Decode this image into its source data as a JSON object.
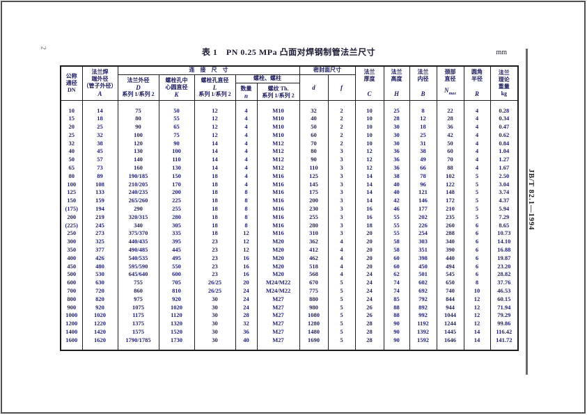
{
  "page": {
    "number": "2",
    "standard_code": "JB/T 82.1—1994",
    "unit": "mm"
  },
  "table": {
    "title": "表 1　PN 0.25 MPa 凸面对焊钢制管法兰尺寸",
    "header": {
      "col_dn": {
        "cn": "公称\n通径\nDN"
      },
      "col_a": {
        "cn": "法兰焊\n端外径\n（管子外径）",
        "sym": "A"
      },
      "group_conn": "连　接　尺　寸",
      "col_d": {
        "cn": "法兰外径",
        "sym": "D",
        "sub": "系列 1/系列 2"
      },
      "col_k": {
        "cn": "螺栓孔中\n心圆直径",
        "sym": "K"
      },
      "col_l": {
        "cn": "螺栓孔直径",
        "sym": "L",
        "sub": "系列 1/系列 2"
      },
      "group_bolt": "螺栓、螺柱",
      "col_n": {
        "cn": "数量",
        "sym": "n"
      },
      "col_th": {
        "cn": "螺纹 Th.",
        "sub": "系列 1/系列 2"
      },
      "group_seal": "密封面尺寸",
      "col_sd": {
        "sym": "d"
      },
      "col_sf": {
        "sym": "f"
      },
      "col_c": {
        "cn": "法兰\n厚度",
        "sym": "C"
      },
      "col_h": {
        "cn": "法兰\n高度",
        "sym": "H"
      },
      "col_b": {
        "cn": "法兰\n内径",
        "sym": "B"
      },
      "col_nmax": {
        "cn": "颈部\n直径",
        "sym": "N",
        "symsub": "max"
      },
      "col_r": {
        "cn": "圆角\n半径",
        "sym": "R"
      },
      "col_kg": {
        "cn": "法兰\n理论\n重量\nkg"
      }
    },
    "rows": [
      [
        "10",
        "14",
        "75",
        "50",
        "12",
        "4",
        "M10",
        "32",
        "2",
        "10",
        "25",
        "8",
        "22",
        "4",
        "0.28"
      ],
      [
        "15",
        "18",
        "80",
        "55",
        "12",
        "4",
        "M10",
        "40",
        "2",
        "10",
        "28",
        "12",
        "28",
        "4",
        "0.34"
      ],
      [
        "20",
        "25",
        "90",
        "65",
        "12",
        "4",
        "M10",
        "50",
        "2",
        "10",
        "30",
        "18",
        "36",
        "4",
        "0.47"
      ],
      [
        "25",
        "32",
        "100",
        "75",
        "12",
        "4",
        "M10",
        "60",
        "2",
        "10",
        "30",
        "25",
        "42",
        "4",
        "0.62"
      ],
      [
        "32",
        "38",
        "120",
        "90",
        "14",
        "4",
        "M12",
        "70",
        "2",
        "10",
        "30",
        "31",
        "50",
        "4",
        "0.84"
      ],
      [
        "40",
        "45",
        "130",
        "100",
        "14",
        "4",
        "M12",
        "80",
        "3",
        "12",
        "36",
        "38",
        "60",
        "4",
        "1.04"
      ],
      [
        "50",
        "57",
        "140",
        "110",
        "14",
        "4",
        "M12",
        "90",
        "3",
        "12",
        "36",
        "49",
        "70",
        "4",
        "1.27"
      ],
      [
        "65",
        "73",
        "160",
        "130",
        "14",
        "4",
        "M12",
        "110",
        "3",
        "12",
        "36",
        "66",
        "88",
        "4",
        "1.67"
      ],
      [
        "80",
        "89",
        "190/185",
        "150",
        "18",
        "4",
        "M16",
        "125",
        "3",
        "14",
        "38",
        "78",
        "102",
        "5",
        "2.50"
      ],
      [
        "100",
        "108",
        "210/205",
        "170",
        "18",
        "4",
        "M16",
        "145",
        "3",
        "14",
        "40",
        "96",
        "122",
        "5",
        "3.04"
      ],
      [
        "125",
        "133",
        "240/235",
        "200",
        "18",
        "8",
        "M16",
        "175",
        "3",
        "14",
        "40",
        "121",
        "148",
        "5",
        "3.74"
      ],
      [
        "150",
        "159",
        "265/260",
        "225",
        "18",
        "8",
        "M16",
        "200",
        "3",
        "14",
        "42",
        "146",
        "172",
        "5",
        "4.37"
      ],
      [
        "(175)",
        "194",
        "290",
        "255",
        "18",
        "8",
        "M16",
        "230",
        "3",
        "16",
        "46",
        "177",
        "210",
        "5",
        "5.94"
      ],
      [
        "200",
        "219",
        "320/315",
        "280",
        "18",
        "8",
        "M16",
        "255",
        "3",
        "16",
        "55",
        "202",
        "235",
        "5",
        "7.29"
      ],
      [
        "(225)",
        "245",
        "340",
        "305",
        "18",
        "8",
        "M16",
        "280",
        "3",
        "18",
        "55",
        "226",
        "260",
        "6",
        "8.65"
      ],
      [
        "250",
        "273",
        "375/370",
        "335",
        "18",
        "12",
        "M16",
        "310",
        "3",
        "20",
        "55",
        "254",
        "288",
        "6",
        "10.73"
      ],
      [
        "300",
        "325",
        "440/435",
        "395",
        "23",
        "12",
        "M20",
        "362",
        "4",
        "20",
        "58",
        "303",
        "340",
        "6",
        "14.10"
      ],
      [
        "350",
        "377",
        "490/485",
        "445",
        "23",
        "12",
        "M20",
        "412",
        "4",
        "20",
        "58",
        "351",
        "390",
        "6",
        "16.88"
      ],
      [
        "400",
        "426",
        "540/535",
        "495",
        "23",
        "16",
        "M20",
        "462",
        "4",
        "20",
        "60",
        "398",
        "440",
        "6",
        "19.87"
      ],
      [
        "450",
        "480",
        "595/590",
        "550",
        "23",
        "16",
        "M20",
        "518",
        "4",
        "20",
        "60",
        "450",
        "494",
        "6",
        "23.20"
      ],
      [
        "500",
        "530",
        "645/640",
        "600",
        "23",
        "16",
        "M20",
        "568",
        "4",
        "24",
        "62",
        "501",
        "545",
        "6",
        "28.82"
      ],
      [
        "600",
        "630",
        "755",
        "705",
        "26/25",
        "20",
        "M24/M22",
        "670",
        "5",
        "24",
        "74",
        "602",
        "650",
        "8",
        "37.76"
      ],
      [
        "700",
        "720",
        "860",
        "810",
        "26/25",
        "24",
        "M24/M22",
        "775",
        "5",
        "24",
        "74",
        "692",
        "740",
        "10",
        "46.53"
      ],
      [
        "800",
        "820",
        "975",
        "920",
        "30",
        "24",
        "M27",
        "880",
        "5",
        "24",
        "85",
        "792",
        "844",
        "12",
        "60.15"
      ],
      [
        "900",
        "920",
        "1075",
        "1020",
        "30",
        "24",
        "M27",
        "980",
        "5",
        "26",
        "88",
        "892",
        "944",
        "12",
        "71.94"
      ],
      [
        "1000",
        "1020",
        "1175",
        "1120",
        "30",
        "28",
        "M27",
        "1080",
        "5",
        "26",
        "88",
        "992",
        "1044",
        "12",
        "79.29"
      ],
      [
        "1200",
        "1220",
        "1375",
        "1320",
        "30",
        "32",
        "M27",
        "1280",
        "5",
        "28",
        "90",
        "1192",
        "1244",
        "12",
        "99.86"
      ],
      [
        "1400",
        "1420",
        "1575",
        "1520",
        "30",
        "36",
        "M27",
        "1480",
        "5",
        "28",
        "90",
        "1392",
        "1445",
        "14",
        "116.42"
      ],
      [
        "1600",
        "1620",
        "1790/1785",
        "1730",
        "30",
        "40",
        "M27",
        "1690",
        "5",
        "28",
        "90",
        "1592",
        "1646",
        "14",
        "141.72"
      ]
    ]
  }
}
